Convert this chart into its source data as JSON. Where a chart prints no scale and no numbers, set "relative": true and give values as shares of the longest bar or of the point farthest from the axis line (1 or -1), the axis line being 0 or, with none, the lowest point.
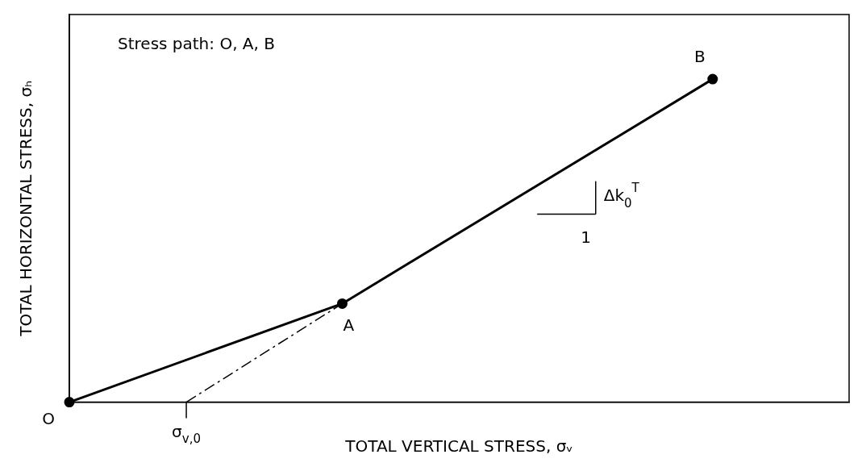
{
  "chart_data": {
    "type": "line",
    "relative": true,
    "xlabel": "TOTAL VERTICAL STRESS, σᵥ",
    "ylabel": "TOTAL HORIZONTAL STRESS, σₕ",
    "marker": "circle",
    "legend": false,
    "grid": false,
    "categories": [
      null,
      null,
      null,
      null,
      null,
      null,
      null,
      null,
      null,
      null,
      null,
      null,
      null,
      null,
      null,
      null,
      null,
      null,
      null,
      null,
      null,
      null,
      null,
      null,
      null,
      null,
      null,
      null,
      null,
      null,
      null,
      null,
      null,
      null,
      null,
      null,
      null,
      null,
      null,
      null,
      null
    ],
    "series": [
      {
        "color": "#000000",
        "values": [
          0,
          null,
          null,
          null,
          null,
          null,
          null,
          null,
          null,
          null,
          null,
          null,
          null,
          null,
          0.305,
          null,
          null,
          null,
          null,
          null,
          null,
          null,
          null,
          null,
          null,
          null,
          null,
          null,
          null,
          null,
          null,
          null,
          null,
          1,
          null,
          null,
          null,
          null,
          null,
          null,
          null
        ]
      },
      {
        "color": "#000000",
        "line_style": "dashed",
        "marker": "none",
        "values": [
          null,
          null,
          null,
          null,
          null,
          null,
          0,
          null,
          null,
          null,
          null,
          null,
          null,
          null,
          0.305,
          null,
          null,
          null,
          null,
          null,
          null,
          null,
          null,
          null,
          null,
          null,
          null,
          null,
          null,
          null,
          null,
          null,
          null,
          null,
          null,
          null,
          null,
          null,
          null,
          null,
          null
        ]
      }
    ],
    "annotations": [
      "Stress path: O, A, B",
      "O",
      "A",
      "B",
      "σ$_{v,0}$",
      "1",
      "Δk$_{0}$$^{T}$"
    ]
  }
}
